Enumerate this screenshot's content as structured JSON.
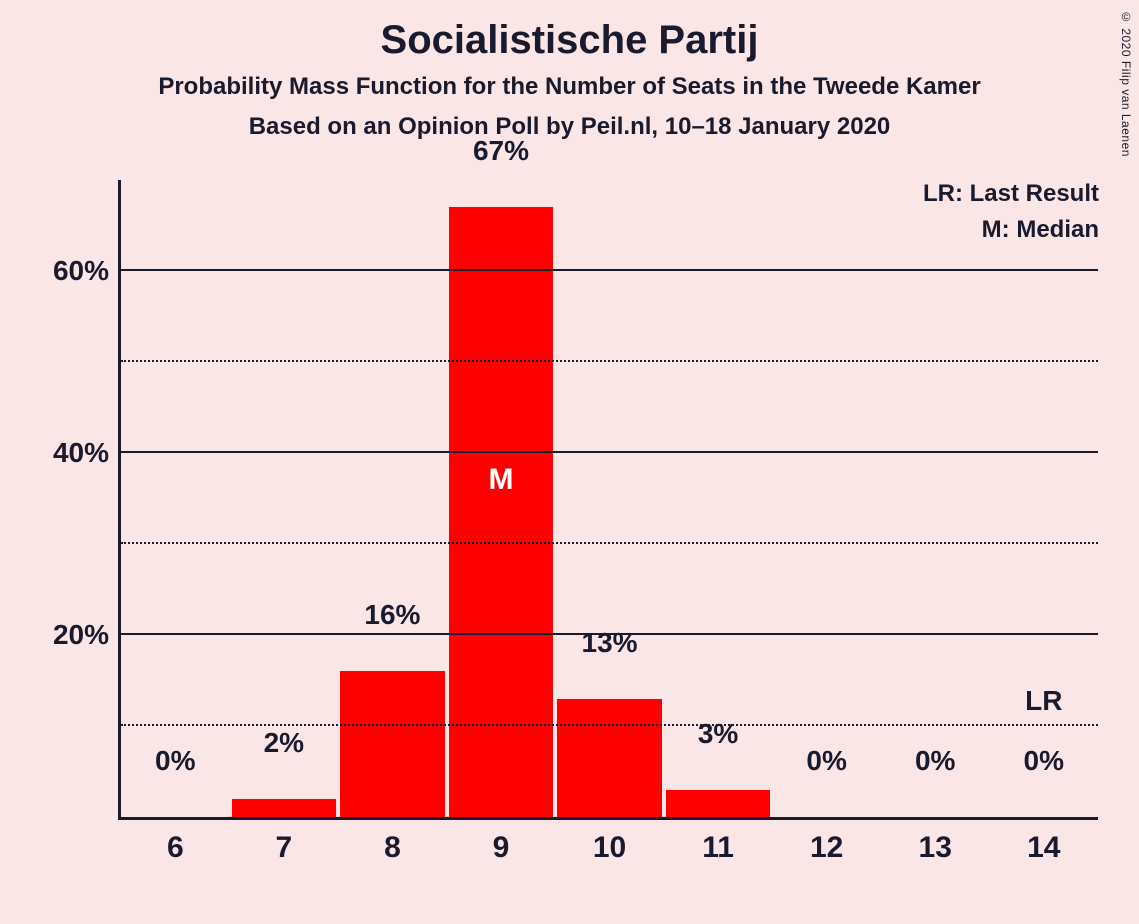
{
  "title": "Socialistische Partij",
  "subtitle": "Probability Mass Function for the Number of Seats in the Tweede Kamer",
  "subtitle2": "Based on an Opinion Poll by Peil.nl, 10–18 January 2020",
  "copyright": "© 2020 Filip van Laenen",
  "legend": {
    "lr": "LR: Last Result",
    "m": "M: Median"
  },
  "chart": {
    "type": "bar",
    "bar_color": "#ff0000",
    "background_color": "#fae6e6",
    "axis_color": "#1a1a2e",
    "ylim": [
      0,
      70
    ],
    "y_major_ticks": [
      20,
      40,
      60
    ],
    "y_minor_ticks": [
      10,
      30,
      50
    ],
    "y_tick_suffix": "%",
    "categories": [
      6,
      7,
      8,
      9,
      10,
      11,
      12,
      13,
      14
    ],
    "values": [
      0,
      2,
      16,
      67,
      13,
      3,
      0,
      0,
      0
    ],
    "value_suffix": "%",
    "median_index": 3,
    "median_marker": "M",
    "last_result_index": 8,
    "last_result_marker": "LR",
    "label_fontsize": 28,
    "title_fontsize": 40,
    "subtitle_fontsize": 24
  }
}
